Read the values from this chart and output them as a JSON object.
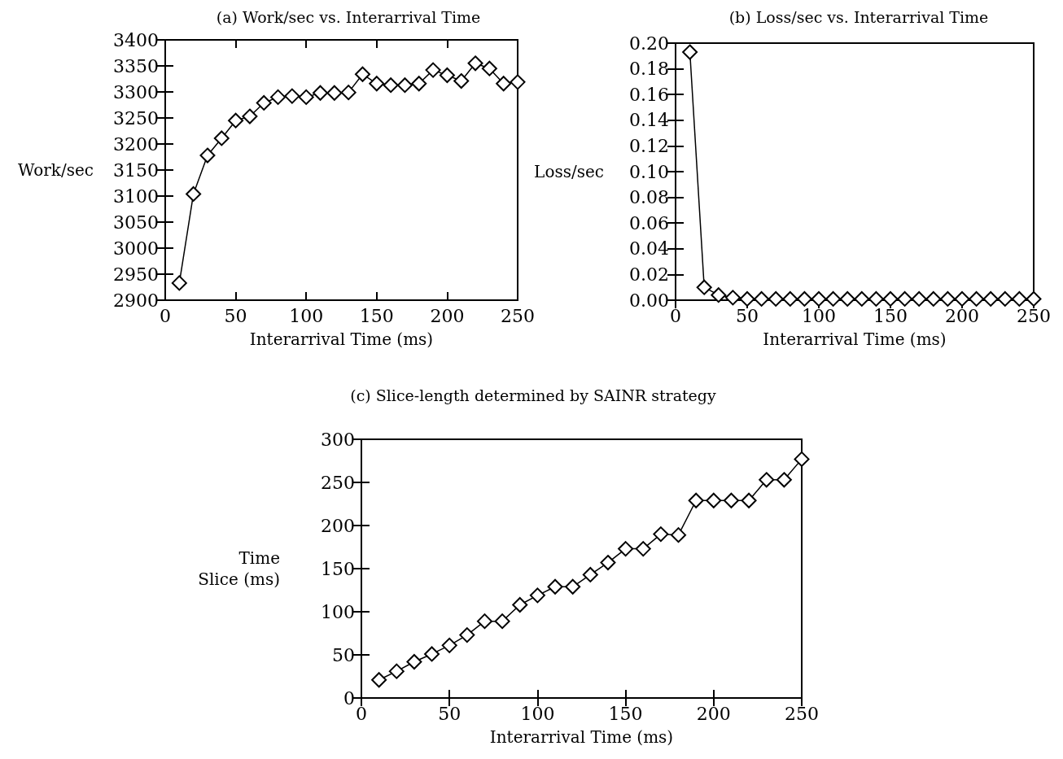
{
  "chart_data": [
    {
      "type": "line",
      "title": "(a) Work/sec vs. Interarrival Time",
      "xlabel": "Interarrival Time (ms)",
      "ylabel": "Work/sec",
      "marker": "diamond",
      "line_style": "solid",
      "grid": false,
      "x": [
        10,
        20,
        30,
        40,
        50,
        60,
        70,
        80,
        90,
        100,
        110,
        120,
        130,
        140,
        150,
        160,
        170,
        180,
        190,
        200,
        210,
        220,
        230,
        240,
        250
      ],
      "series": [
        {
          "color": "#000000",
          "values": [
            2933,
            3104,
            3178,
            3211,
            3245,
            3253,
            3279,
            3290,
            3292,
            3290,
            3298,
            3298,
            3299,
            3334,
            3316,
            3313,
            3313,
            3316,
            3342,
            3332,
            3321,
            3355,
            3345,
            3316,
            3319
          ]
        }
      ],
      "xlim": [
        0,
        250
      ],
      "xticks": [
        0,
        50,
        100,
        150,
        200,
        250
      ],
      "ylim": [
        2900,
        3400
      ],
      "yticks": [
        2900,
        2950,
        3000,
        3050,
        3100,
        3150,
        3200,
        3250,
        3300,
        3350,
        3400
      ]
    },
    {
      "type": "line",
      "title": "(b) Loss/sec vs. Interarrival Time",
      "xlabel": "Interarrival Time (ms)",
      "ylabel": "Loss/sec",
      "marker": "diamond",
      "line_style": "solid",
      "grid": false,
      "x": [
        10,
        20,
        30,
        40,
        50,
        60,
        70,
        80,
        90,
        100,
        110,
        120,
        130,
        140,
        150,
        160,
        170,
        180,
        190,
        200,
        210,
        220,
        230,
        240,
        250
      ],
      "series": [
        {
          "color": "#000000",
          "values": [
            0.193,
            0.01,
            0.004,
            0.002,
            0.001,
            0.001,
            0.001,
            0.001,
            0.001,
            0.001,
            0.001,
            0.001,
            0.001,
            0.001,
            0.001,
            0.001,
            0.001,
            0.001,
            0.001,
            0.001,
            0.001,
            0.001,
            0.001,
            0.001,
            0.001
          ]
        }
      ],
      "xlim": [
        0,
        250
      ],
      "xticks": [
        0,
        50,
        100,
        150,
        200,
        250
      ],
      "ylim": [
        0,
        0.2
      ],
      "yticks": [
        {
          "value": 0,
          "label": "0.00"
        },
        {
          "value": 0.02,
          "label": "0.02"
        },
        {
          "value": 0.04,
          "label": "0.04"
        },
        {
          "value": 0.06,
          "label": "0.06"
        },
        {
          "value": 0.08,
          "label": "0.08"
        },
        {
          "value": 0.1,
          "label": "0.10"
        },
        {
          "value": 0.12,
          "label": "0.12"
        },
        {
          "value": 0.14,
          "label": "0.14"
        },
        {
          "value": 0.16,
          "label": "0.16"
        },
        {
          "value": 0.18,
          "label": "0.18"
        },
        {
          "value": 0.2,
          "label": "0.20"
        }
      ]
    },
    {
      "type": "line",
      "title": "(c) Slice-length determined by SAINR strategy",
      "xlabel": "Interarrival Time (ms)",
      "ylabel": "Time\nSlice (ms)",
      "marker": "diamond",
      "line_style": "solid",
      "grid": false,
      "x": [
        10,
        20,
        30,
        40,
        50,
        60,
        70,
        80,
        90,
        100,
        110,
        120,
        130,
        140,
        150,
        160,
        170,
        180,
        190,
        200,
        210,
        220,
        230,
        240,
        250
      ],
      "series": [
        {
          "color": "#000000",
          "values": [
            21,
            31,
            42,
            51,
            61,
            73,
            89,
            89,
            108,
            119,
            129,
            129,
            143,
            157,
            173,
            173,
            190,
            189,
            229,
            229,
            229,
            229,
            253,
            253,
            277
          ]
        }
      ],
      "xlim": [
        0,
        250
      ],
      "xticks": [
        0,
        50,
        100,
        150,
        200,
        250
      ],
      "ylim": [
        0,
        300
      ],
      "yticks": [
        0,
        50,
        100,
        150,
        200,
        250,
        300
      ]
    }
  ]
}
